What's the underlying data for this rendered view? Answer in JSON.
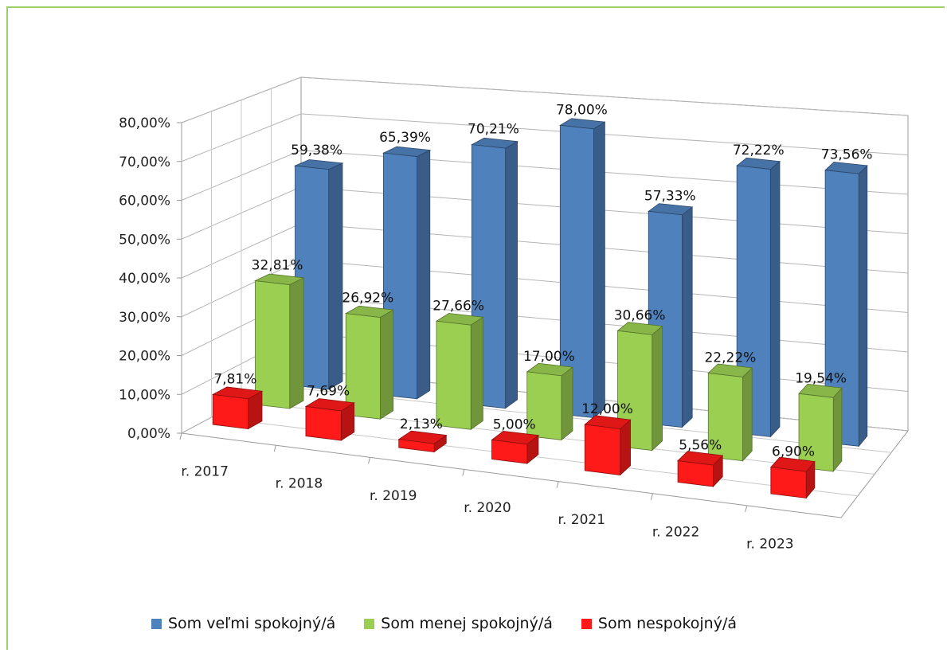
{
  "chart_data": {
    "type": "bar",
    "categories": [
      "r. 2017",
      "r. 2018",
      "r. 2019",
      "r. 2020",
      "r. 2021",
      "r. 2022",
      "r. 2023"
    ],
    "series": [
      {
        "name": "Som veľmi spokojný/á",
        "values": [
          59.38,
          65.39,
          70.21,
          78.0,
          57.33,
          72.22,
          73.56
        ],
        "labels": [
          "59,38%",
          "65,39%",
          "70,21%",
          "78,00%",
          "57,33%",
          "72,22%",
          "73,56%"
        ],
        "color": "#4f81bd"
      },
      {
        "name": "Som menej spokojný/á",
        "values": [
          32.81,
          26.92,
          27.66,
          17.0,
          30.66,
          22.22,
          19.54
        ],
        "labels": [
          "32,81%",
          "26,92%",
          "27,66%",
          "17,00%",
          "30,66%",
          "22,22%",
          "19,54%"
        ],
        "color": "#9bcf52"
      },
      {
        "name": "Som nespokojný/á",
        "values": [
          7.81,
          7.69,
          2.13,
          5.0,
          12.0,
          5.56,
          6.9
        ],
        "labels": [
          "7,81%",
          "7,69%",
          "2,13%",
          "5,00%",
          "12,00%",
          "5,56%",
          "6,90%"
        ],
        "color": "#ff1a1a"
      }
    ],
    "yticks": [
      "0,00%",
      "10,00%",
      "20,00%",
      "30,00%",
      "40,00%",
      "50,00%",
      "60,00%",
      "70,00%",
      "80,00%"
    ],
    "ylim": [
      0,
      80
    ],
    "grid": true,
    "style": "3d-clustered-column",
    "legend_position": "bottom"
  }
}
